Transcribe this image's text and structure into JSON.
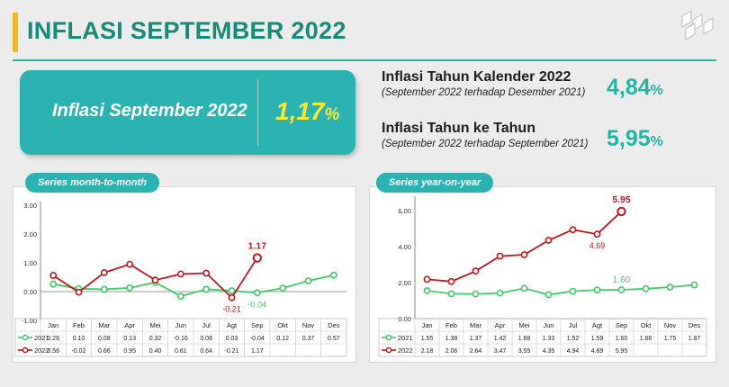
{
  "header": {
    "title": "INFLASI SEPTEMBER 2022"
  },
  "monthly": {
    "label": "Inflasi September 2022",
    "value": "1,17",
    "unit": "%"
  },
  "calendar_year": {
    "title": "Inflasi Tahun Kalender 2022",
    "subtitle": "(September 2022 terhadap Desember 2021)",
    "value": "4,84",
    "unit": "%"
  },
  "year_on_year": {
    "title": "Inflasi Tahun ke Tahun",
    "subtitle": "(September 2022 terhadap September 2021)",
    "value": "5,95",
    "unit": "%"
  },
  "colors": {
    "accent": "#2bb3b1",
    "value_yellow": "#f5e935",
    "series_2021": "#45c76b",
    "series_2022": "#c0171d",
    "title_green": "#1a8a78"
  },
  "chart_data": [
    {
      "id": "mtm",
      "type": "line",
      "title": "Series month-to-month",
      "categories": [
        "Jan",
        "Feb",
        "Mar",
        "Apr",
        "Mei",
        "Jun",
        "Jul",
        "Agt",
        "Sep",
        "Okt",
        "Nov",
        "Des"
      ],
      "yticks": [
        "3.00",
        "2.00",
        "1.00",
        "0.00",
        "-1.00"
      ],
      "ylim": [
        -1,
        3
      ],
      "series": [
        {
          "name": "2021",
          "color": "#45c76b",
          "values": [
            0.26,
            0.1,
            0.08,
            0.13,
            0.32,
            -0.16,
            0.08,
            0.03,
            -0.04,
            0.12,
            0.37,
            0.57
          ],
          "labels": [
            "0.26",
            "0.10",
            "0.08",
            "0.13",
            "0.32",
            "-0.16",
            "0.08",
            "0.03",
            "-0.04",
            "0.12",
            "0.37",
            "0.57"
          ]
        },
        {
          "name": "2022",
          "color": "#c0171d",
          "values": [
            0.56,
            -0.02,
            0.66,
            0.95,
            0.4,
            0.61,
            0.64,
            -0.21,
            1.17,
            null,
            null,
            null
          ],
          "labels": [
            "0.56",
            "-0.02",
            "0.66",
            "0.95",
            "0.40",
            "0.61",
            "0.64",
            "-0.21",
            "1.17",
            "",
            "",
            ""
          ]
        }
      ],
      "annotations": [
        {
          "series": 1,
          "index": 8,
          "text": "1.17",
          "pos": "above"
        },
        {
          "series": 1,
          "index": 7,
          "text": "-0.21",
          "pos": "below"
        },
        {
          "series": 0,
          "index": 8,
          "text": "-0.04",
          "pos": "below"
        }
      ],
      "grid": false
    },
    {
      "id": "yoy",
      "type": "line",
      "title": "Series year-on-year",
      "categories": [
        "Jan",
        "Feb",
        "Mar",
        "Apr",
        "Mei",
        "Jun",
        "Jul",
        "Agt",
        "Sep",
        "Okt",
        "Nov",
        "Des"
      ],
      "yticks": [
        "6.00",
        "4.00",
        "2.00",
        "0.00"
      ],
      "ylim": [
        0,
        6.6
      ],
      "series": [
        {
          "name": "2021",
          "color": "#45c76b",
          "values": [
            1.55,
            1.38,
            1.37,
            1.42,
            1.68,
            1.33,
            1.52,
            1.59,
            1.6,
            1.66,
            1.75,
            1.87
          ],
          "labels": [
            "1.55",
            "1.38",
            "1.37",
            "1.42",
            "1.68",
            "1.33",
            "1.52",
            "1.59",
            "1.60",
            "1.66",
            "1.75",
            "1.87"
          ]
        },
        {
          "name": "2022",
          "color": "#c0171d",
          "values": [
            2.18,
            2.06,
            2.64,
            3.47,
            3.55,
            4.35,
            4.94,
            4.69,
            5.95,
            null,
            null,
            null
          ],
          "labels": [
            "2.18",
            "2.06",
            "2.64",
            "3.47",
            "3.55",
            "4.35",
            "4.94",
            "4.69",
            "5.95",
            "",
            "",
            ""
          ]
        }
      ],
      "annotations": [
        {
          "series": 1,
          "index": 8,
          "text": "5.95",
          "pos": "above"
        },
        {
          "series": 1,
          "index": 7,
          "text": "4.69",
          "pos": "below"
        },
        {
          "series": 0,
          "index": 8,
          "text": "1.60",
          "pos": "above-green"
        }
      ],
      "grid": false
    }
  ]
}
